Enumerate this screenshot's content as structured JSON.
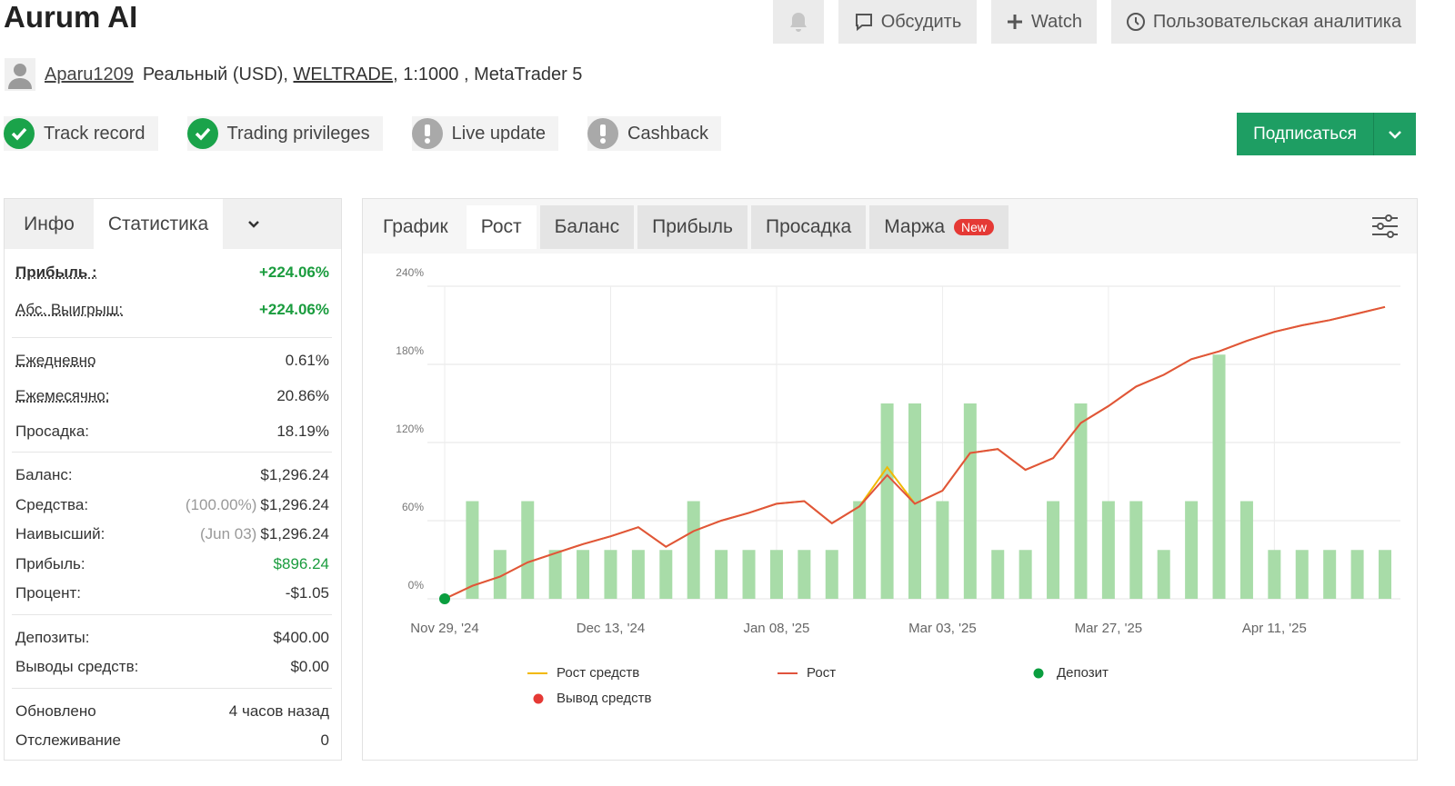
{
  "header": {
    "title": "Aurum AI",
    "buttons": [
      "Обсудить",
      "Watch",
      "Пользовательская аналитика"
    ]
  },
  "account": {
    "user": "Aparu1209",
    "type": "Реальный (USD),",
    "broker": "WELTRADE",
    "details": ", 1:1000 , MetaTrader 5"
  },
  "badges": [
    {
      "label": "Track record",
      "verified": true
    },
    {
      "label": "Trading privileges",
      "verified": true
    },
    {
      "label": "Live update",
      "verified": false
    },
    {
      "label": "Cashback",
      "verified": false
    }
  ],
  "subscribe": "Подписаться",
  "stats": {
    "tabs": [
      "Инфо",
      "Статистика"
    ],
    "active": 1,
    "groups": [
      [
        {
          "label": "Прибыль :",
          "value": "+224.06%",
          "color": "#1a9c3e"
        },
        {
          "label": "Абс. Выигрыш:",
          "value": "+224.06%",
          "color": "#1a9c3e"
        }
      ],
      [
        {
          "label": "Ежедневно",
          "value": "0.61%"
        },
        {
          "label": "Ежемесячно:",
          "value": "20.86%"
        },
        {
          "label": "Просадка:",
          "value": "18.19%"
        }
      ],
      [
        {
          "label": "Баланс:",
          "value": "$1,296.24"
        },
        {
          "label": "Средства:",
          "note": "(100.00%)",
          "value": "$1,296.24"
        },
        {
          "label": "Наивысший:",
          "note": "(Jun 03)",
          "value": "$1,296.24"
        },
        {
          "label": "Прибыль:",
          "value": "$896.24",
          "color": "#1a9c3e"
        },
        {
          "label": "Процент:",
          "value": "-$1.05"
        }
      ],
      [
        {
          "label": "Депозиты:",
          "value": "$400.00"
        },
        {
          "label": "Выводы средств:",
          "value": "$0.00"
        }
      ],
      [
        {
          "label": "Обновлено",
          "value": "4 часов назад"
        },
        {
          "label": "Отслеживание",
          "value": "0"
        }
      ]
    ]
  },
  "chart_tabs": {
    "items": [
      "График",
      "Рост",
      "Баланс",
      "Прибыль",
      "Просадка",
      "Маржа"
    ],
    "active": 1,
    "badge": "New"
  },
  "chart_data": {
    "type": "bar",
    "categories": [
      "Nov 29, '24",
      null,
      null,
      null,
      null,
      null,
      "Dec 13, '24",
      null,
      null,
      null,
      null,
      null,
      "Jan 08, '25",
      null,
      null,
      null,
      null,
      null,
      "Mar 03, '25",
      null,
      null,
      null,
      null,
      null,
      "Mar 27, '25",
      null,
      null,
      null,
      null,
      null,
      "Apr 11, '25",
      null,
      null,
      null,
      null
    ],
    "ylim": [
      0,
      240
    ],
    "yticks": [
      {
        "value": 0,
        "label": "0%"
      },
      {
        "value": 60,
        "label": "60%"
      },
      {
        "value": 120,
        "label": "120%"
      },
      {
        "value": 180,
        "label": "180%"
      },
      {
        "value": 240,
        "label": "240%"
      }
    ],
    "grid": true,
    "bars": {
      "color": "#a8dca8",
      "values": [
        null,
        75,
        37.5,
        75,
        37.5,
        37.5,
        37.5,
        37.5,
        37.5,
        75,
        37.5,
        37.5,
        37.5,
        37.5,
        37.5,
        75,
        150,
        150,
        75,
        150,
        37.5,
        37.5,
        75,
        150,
        75,
        75,
        37.5,
        75,
        187.5,
        75,
        37.5,
        37.5,
        37.5,
        37.5,
        37.5
      ]
    },
    "series": [
      {
        "name": "Рост средств",
        "type": "line",
        "color": "#f2b900",
        "values": [
          0,
          10,
          17,
          28,
          35,
          42,
          48,
          55,
          40,
          52,
          60,
          66,
          73,
          75,
          58,
          71,
          101,
          73,
          83,
          112,
          115,
          99,
          108,
          135,
          148,
          163,
          172,
          184,
          190,
          198,
          205,
          210,
          214,
          219,
          224.06
        ]
      },
      {
        "name": "Рост",
        "type": "line",
        "color": "#e0533d",
        "values": [
          0,
          10,
          17,
          28,
          35,
          42,
          48,
          55,
          40,
          52,
          60,
          66,
          73,
          75,
          58,
          71,
          95,
          73,
          83,
          112,
          115,
          99,
          108,
          135,
          148,
          163,
          172,
          184,
          190,
          198,
          205,
          210,
          214,
          219,
          224.06
        ]
      },
      {
        "name": "Депозит",
        "type": "scatter",
        "color": "#0a9e3f",
        "values": [
          0,
          null,
          null,
          null,
          null,
          null,
          null,
          null,
          null,
          null,
          null,
          null,
          null,
          null,
          null,
          null,
          null,
          null,
          null,
          null,
          null,
          null,
          null,
          null,
          null,
          null,
          null,
          null,
          null,
          null,
          null,
          null,
          null,
          null,
          null
        ]
      },
      {
        "name": "Вывод средств",
        "type": "scatter",
        "color": "#e53935",
        "values": [
          null,
          null,
          null,
          null,
          null,
          null,
          null,
          null,
          null,
          null,
          null,
          null,
          null,
          null,
          null,
          null,
          null,
          null,
          null,
          null,
          null,
          null,
          null,
          null,
          null,
          null,
          null,
          null,
          null,
          null,
          null,
          null,
          null,
          null,
          null
        ]
      }
    ]
  }
}
